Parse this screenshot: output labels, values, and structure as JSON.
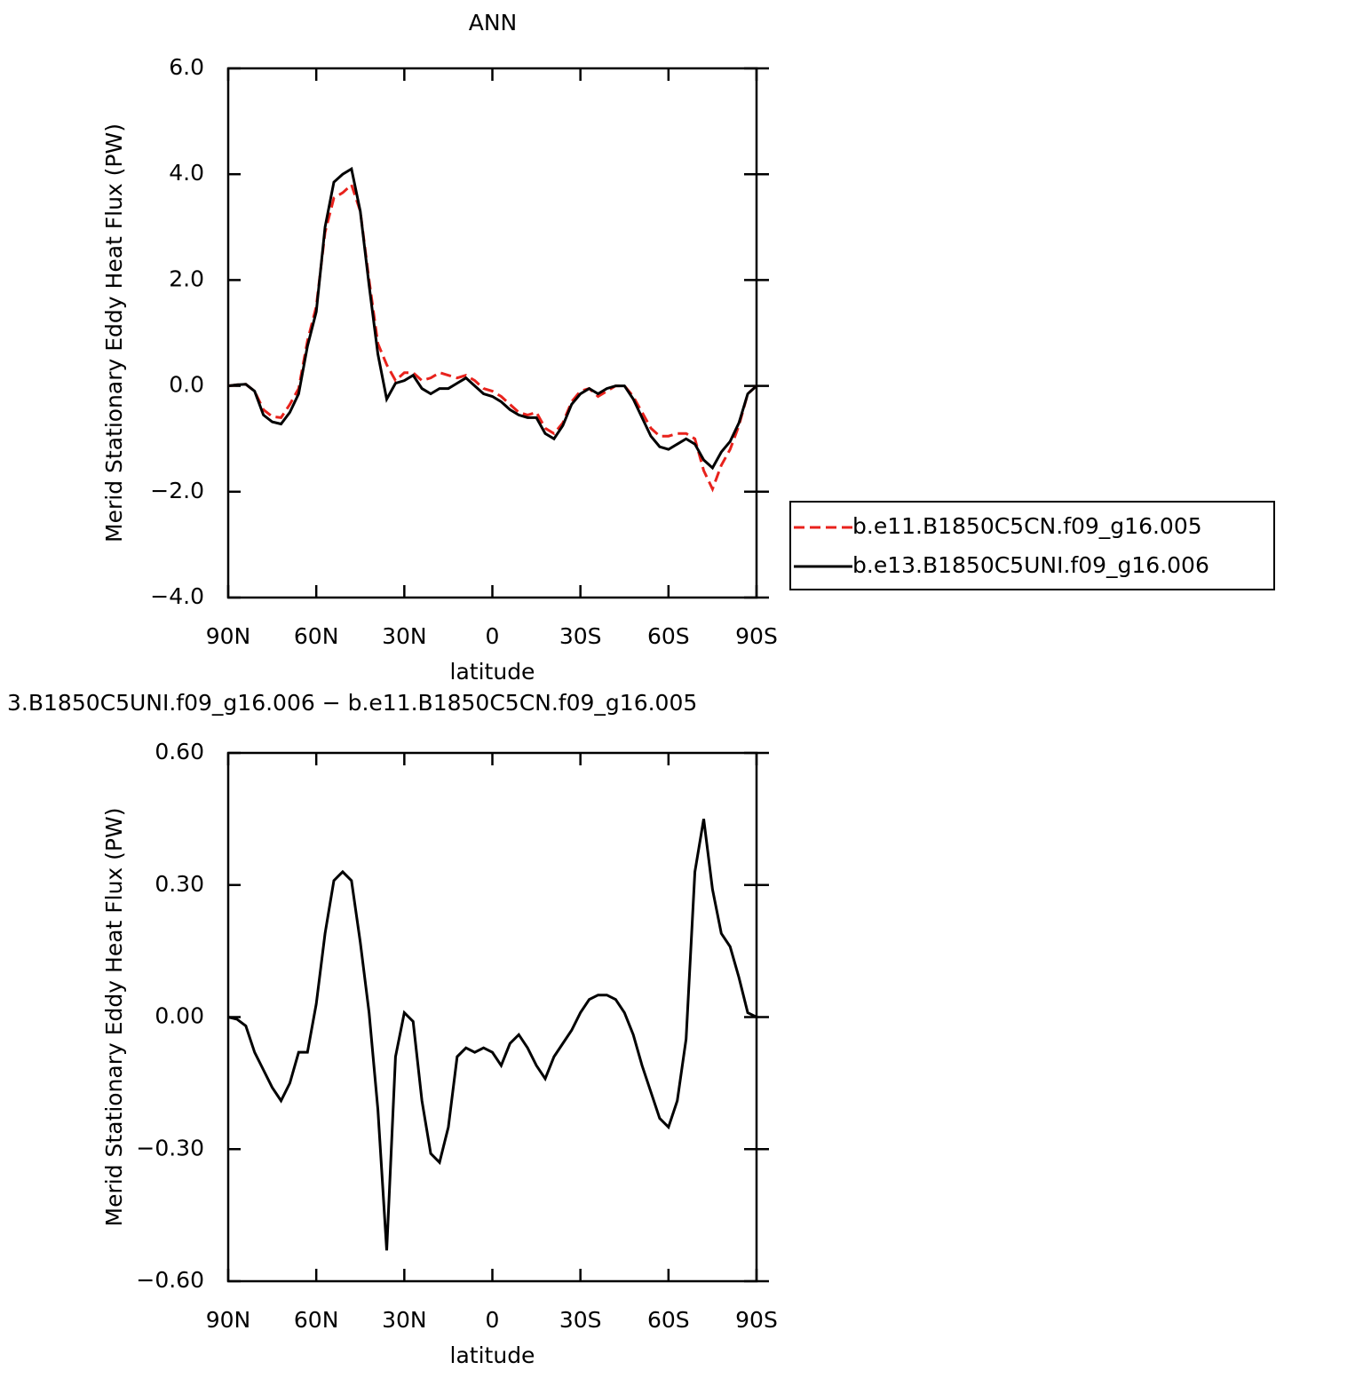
{
  "chart_data": [
    {
      "type": "line",
      "title": "ANN",
      "xlabel": "latitude",
      "ylabel": "Merid Stationary Eddy Heat Flux (PW)",
      "x": [
        90,
        87,
        84,
        81,
        78,
        75,
        72,
        69,
        66,
        63,
        60,
        57,
        54,
        51,
        48,
        45,
        42,
        39,
        36,
        33,
        30,
        27,
        24,
        21,
        18,
        15,
        12,
        9,
        6,
        3,
        0,
        -3,
        -6,
        -9,
        -12,
        -15,
        -18,
        -21,
        -24,
        -27,
        -30,
        -33,
        -36,
        -39,
        -42,
        -45,
        -48,
        -51,
        -54,
        -57,
        -60,
        -63,
        -66,
        -69,
        -72,
        -75,
        -78,
        -81,
        -84,
        -87,
        -90
      ],
      "xlim": [
        90,
        -90
      ],
      "xticks": [
        {
          "value": 90,
          "label": "90N"
        },
        {
          "value": 60,
          "label": "60N"
        },
        {
          "value": 30,
          "label": "30N"
        },
        0,
        {
          "value": -30,
          "label": "30S"
        },
        {
          "value": -60,
          "label": "60S"
        },
        {
          "value": -90,
          "label": "90S"
        }
      ],
      "ylim": [
        -4,
        6
      ],
      "yticks": [
        {
          "value": -4,
          "label": "−4.0"
        },
        {
          "value": -2,
          "label": "−2.0"
        },
        {
          "value": 0,
          "label": "0.0"
        },
        {
          "value": 2,
          "label": "2.0"
        },
        {
          "value": 4,
          "label": "4.0"
        },
        {
          "value": 6,
          "label": "6.0"
        }
      ],
      "legend": true,
      "legend_position": "right",
      "series": [
        {
          "name": "b.e11.B1850C5CN.f09_g16.005",
          "color": "#e8221c",
          "linestyle": "dashed",
          "values": [
            0,
            0.02,
            0.03,
            -0.1,
            -0.45,
            -0.58,
            -0.6,
            -0.35,
            -0.05,
            0.85,
            1.5,
            2.9,
            3.55,
            3.65,
            3.8,
            3.3,
            2.0,
            0.8,
            0.4,
            0.1,
            0.25,
            0.25,
            0.1,
            0.15,
            0.25,
            0.2,
            0.15,
            0.2,
            0.1,
            -0.05,
            -0.1,
            -0.2,
            -0.35,
            -0.5,
            -0.55,
            -0.5,
            -0.8,
            -0.9,
            -0.7,
            -0.3,
            -0.1,
            -0.05,
            -0.2,
            -0.1,
            0.0,
            0.0,
            -0.2,
            -0.5,
            -0.8,
            -0.95,
            -0.95,
            -0.9,
            -0.9,
            -1.0,
            -1.6,
            -1.95,
            -1.5,
            -1.2,
            -0.75,
            -0.15,
            0
          ]
        },
        {
          "name": "b.e13.B1850C5UNI.f09_g16.006",
          "color": "#000000",
          "linestyle": "solid",
          "values": [
            0,
            0.02,
            0.03,
            -0.1,
            -0.55,
            -0.68,
            -0.72,
            -0.5,
            -0.15,
            0.75,
            1.4,
            3.0,
            3.85,
            4.0,
            4.1,
            3.3,
            1.9,
            0.6,
            -0.25,
            0.05,
            0.1,
            0.2,
            -0.05,
            -0.15,
            -0.05,
            -0.05,
            0.05,
            0.15,
            0.0,
            -0.15,
            -0.2,
            -0.3,
            -0.45,
            -0.55,
            -0.6,
            -0.6,
            -0.9,
            -1.0,
            -0.75,
            -0.35,
            -0.15,
            -0.05,
            -0.15,
            -0.05,
            0.0,
            0.0,
            -0.25,
            -0.6,
            -0.95,
            -1.15,
            -1.2,
            -1.1,
            -1.0,
            -1.1,
            -1.4,
            -1.55,
            -1.25,
            -1.05,
            -0.7,
            -0.15,
            0
          ]
        }
      ]
    },
    {
      "type": "line",
      "title": "3.B1850C5UNI.f09_g16.006 − b.e11.B1850C5CN.f09_g16.005",
      "xlabel": "latitude",
      "ylabel": "Merid Stationary Eddy Heat Flux (PW)",
      "x": [
        90,
        87,
        84,
        81,
        78,
        75,
        72,
        69,
        66,
        63,
        60,
        57,
        54,
        51,
        48,
        45,
        42,
        39,
        36,
        33,
        30,
        27,
        24,
        21,
        18,
        15,
        12,
        9,
        6,
        3,
        0,
        -3,
        -6,
        -9,
        -12,
        -15,
        -18,
        -21,
        -24,
        -27,
        -30,
        -33,
        -36,
        -39,
        -42,
        -45,
        -48,
        -51,
        -54,
        -57,
        -60,
        -63,
        -66,
        -69,
        -72,
        -75,
        -78,
        -81,
        -84,
        -87,
        -90
      ],
      "xlim": [
        90,
        -90
      ],
      "xticks": [
        {
          "value": 90,
          "label": "90N"
        },
        {
          "value": 60,
          "label": "60N"
        },
        {
          "value": 30,
          "label": "30N"
        },
        0,
        {
          "value": -30,
          "label": "30S"
        },
        {
          "value": -60,
          "label": "60S"
        },
        {
          "value": -90,
          "label": "90S"
        }
      ],
      "ylim": [
        -0.6,
        0.6
      ],
      "yticks": [
        {
          "value": -0.6,
          "label": "−0.60"
        },
        {
          "value": -0.3,
          "label": "−0.30"
        },
        {
          "value": 0,
          "label": "0.00"
        },
        {
          "value": 0.3,
          "label": "0.30"
        },
        {
          "value": 0.6,
          "label": "0.60"
        }
      ],
      "legend": false,
      "series": [
        {
          "color": "#000000",
          "linestyle": "solid",
          "values": [
            0,
            -0.005,
            -0.02,
            -0.08,
            -0.12,
            -0.16,
            -0.19,
            -0.15,
            -0.08,
            -0.08,
            0.03,
            0.19,
            0.31,
            0.33,
            0.31,
            0.17,
            0.01,
            -0.21,
            -0.53,
            -0.09,
            0.01,
            -0.01,
            -0.19,
            -0.31,
            -0.33,
            -0.25,
            -0.09,
            -0.07,
            -0.08,
            -0.07,
            -0.08,
            -0.11,
            -0.06,
            -0.04,
            -0.07,
            -0.11,
            -0.14,
            -0.09,
            -0.06,
            -0.03,
            0.01,
            0.04,
            0.05,
            0.05,
            0.04,
            0.01,
            -0.04,
            -0.11,
            -0.17,
            -0.23,
            -0.25,
            -0.19,
            -0.05,
            0.33,
            0.45,
            0.29,
            0.19,
            0.16,
            0.09,
            0.01,
            0
          ]
        }
      ]
    }
  ]
}
